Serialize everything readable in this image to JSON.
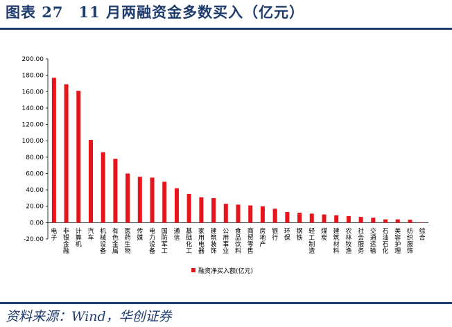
{
  "header": {
    "title": "图表 27　11 月两融资金多数买入（亿元）"
  },
  "footer": {
    "source": "资料来源：Wind，华创证券"
  },
  "chart_data": {
    "type": "bar",
    "title": "",
    "xlabel": "",
    "ylabel": "",
    "ylim": [
      -20,
      200
    ],
    "yticks": [
      -20,
      0,
      20,
      40,
      60,
      80,
      100,
      120,
      140,
      160,
      180,
      200
    ],
    "ytick_labels": [
      "-20.00",
      "0.00",
      "20.00",
      "40.00",
      "60.00",
      "80.00",
      "100.00",
      "120.00",
      "140.00",
      "160.00",
      "180.00",
      "200.00"
    ],
    "grid": false,
    "legend_position": "bottom-left",
    "series_color": "#e8141a",
    "categories": [
      "电子",
      "非银金融",
      "计算机",
      "汽车",
      "机械设备",
      "有色金属",
      "医药生物",
      "传媒",
      "电力设备",
      "国防军工",
      "通信",
      "基础化工",
      "家用电器",
      "建筑装饰",
      "公用事业",
      "食品饮料",
      "商贸零售",
      "房地产",
      "银行",
      "环保",
      "钢铁",
      "轻工制造",
      "煤炭",
      "建筑材料",
      "农林牧渔",
      "社会服务",
      "交通运输",
      "石油石化",
      "美容护理",
      "纺织服饰",
      "综合"
    ],
    "series": [
      {
        "name": "融资净买入额(亿元)",
        "values": [
          177,
          169,
          161,
          101,
          86,
          78,
          60,
          56,
          55,
          50,
          42,
          35,
          31,
          30,
          23,
          22,
          21,
          20,
          17,
          13,
          12,
          11,
          10,
          9,
          8,
          7,
          6,
          4,
          4,
          3.5,
          0.5
        ]
      }
    ]
  }
}
